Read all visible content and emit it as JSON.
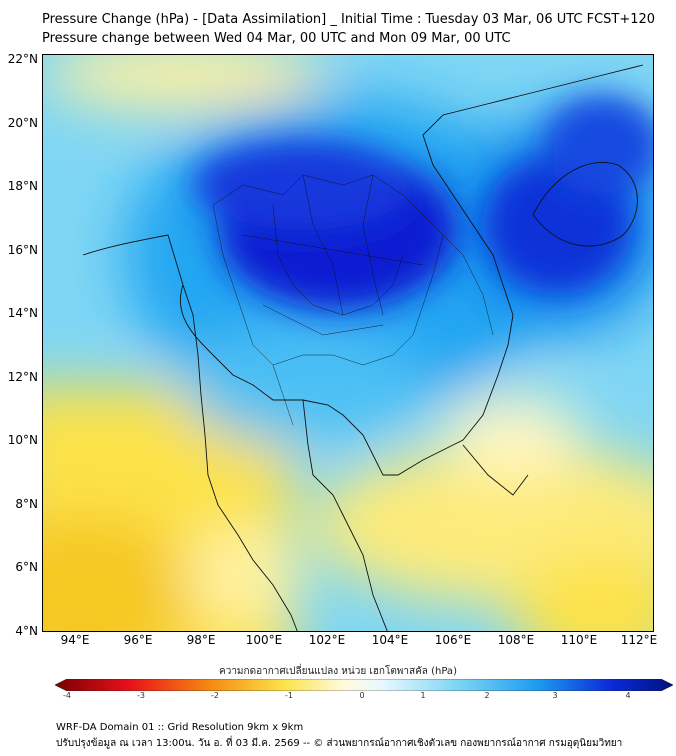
{
  "title": "Pressure Change (hPa) - [Data Assimilation] _ Initial Time : Tuesday 03 Mar, 06 UTC FCST+120",
  "subtitle": "Pressure change between Wed 04 Mar, 00 UTC and Mon 09 Mar, 00 UTC",
  "map": {
    "lat_ticks": [
      "22°N",
      "20°N",
      "18°N",
      "16°N",
      "14°N",
      "12°N",
      "10°N",
      "8°N",
      "6°N",
      "4°N"
    ],
    "lon_ticks": [
      "94°E",
      "96°E",
      "98°E",
      "100°E",
      "102°E",
      "104°E",
      "106°E",
      "108°E",
      "110°E",
      "112°E"
    ],
    "lat_range": [
      4,
      22.2
    ],
    "lon_range": [
      93,
      112.4
    ],
    "colors": {
      "strong_fall": "#0010d0",
      "fall": "#1f9cf0",
      "slight_fall": "#a8e8f8",
      "neutral": "#ffffff",
      "slight_rise": "#fff4a8",
      "rise": "#fce040"
    }
  },
  "colorbar": {
    "label": "ความกดอากาศเปลี่ยนแปลง หน่วย เฮกโตพาสคัล (hPa)",
    "ticks": [
      "-4",
      "-3",
      "-2",
      "-1",
      "0",
      "1",
      "2",
      "3",
      "4"
    ],
    "range": [
      -4,
      4
    ]
  },
  "footer": {
    "line1": "WRF-DA Domain 01 :: Grid Resolution 9km x 9km",
    "line2": "ปรับปรุงข้อมูล ณ เวลา 13:00น. วัน อ. ที่ 03 มี.ค. 2569 -- © ส่วนพยากรณ์อากาศเชิงตัวเลข กองพยากรณ์อากาศ กรมอุตุนิยมวิทยา"
  }
}
